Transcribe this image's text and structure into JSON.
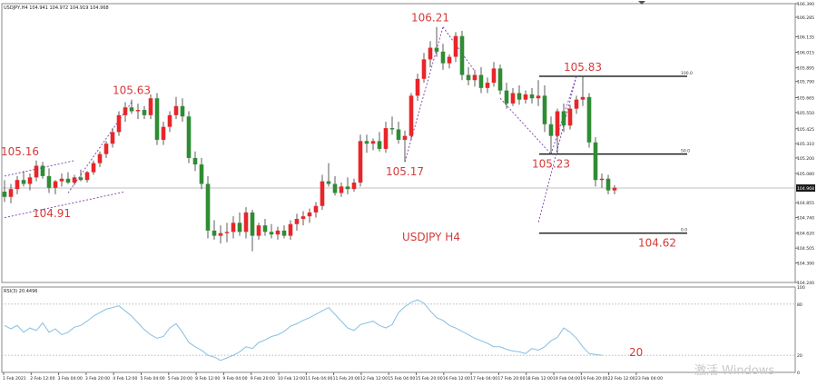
{
  "chart_data": [
    {
      "type": "candlestick",
      "title": "USDJPY,H4 104.941 104.972 104.919 104.968",
      "center_label": "USDJPY H4",
      "symbol": "USDJPY",
      "timeframe": "H4",
      "ylim": [
        104.24,
        106.39
      ],
      "current_price": "104.968",
      "y_ticks": [
        "106.390",
        "106.285",
        "106.135",
        "106.015",
        "105.895",
        "105.790",
        "105.665",
        "105.550",
        "105.425",
        "105.310",
        "105.200",
        "105.080",
        "104.968",
        "104.855",
        "104.740",
        "104.620",
        "104.505",
        "104.390",
        "104.240"
      ],
      "x_ticks": [
        "1 Feb 2021",
        "2 Feb 12:00",
        "3 Feb 04:00",
        "3 Feb 20:00",
        "4 Feb 12:00",
        "5 Feb 04:00",
        "5 Feb 20:00",
        "8 Feb 12:00",
        "9 Feb 04:00",
        "9 Feb 20:00",
        "10 Feb 12:00",
        "11 Feb 04:00",
        "11 Feb 20:00",
        "12 Feb 12:00",
        "15 Feb 04:00",
        "15 Feb 20:00",
        "16 Feb 12:00",
        "17 Feb 04:00",
        "17 Feb 20:00",
        "18 Feb 12:00",
        "19 Feb 04:00",
        "19 Feb 20:00",
        "22 Feb 12:00",
        "23 Feb 04:00"
      ],
      "up_color": "#e8262a",
      "down_color": "#2f8c34",
      "candles": [
        {
          "o": 104.94,
          "h": 105.03,
          "l": 104.86,
          "c": 104.9
        },
        {
          "o": 104.9,
          "h": 105.0,
          "l": 104.85,
          "c": 104.96
        },
        {
          "o": 104.96,
          "h": 105.06,
          "l": 104.92,
          "c": 105.03
        },
        {
          "o": 105.03,
          "h": 105.1,
          "l": 104.98,
          "c": 105.0
        },
        {
          "o": 105.0,
          "h": 105.08,
          "l": 104.95,
          "c": 105.05
        },
        {
          "o": 105.05,
          "h": 105.18,
          "l": 105.02,
          "c": 105.14
        },
        {
          "o": 105.14,
          "h": 105.17,
          "l": 105.04,
          "c": 105.06
        },
        {
          "o": 105.06,
          "h": 105.12,
          "l": 104.93,
          "c": 104.97
        },
        {
          "o": 104.97,
          "h": 105.03,
          "l": 104.92,
          "c": 105.02
        },
        {
          "o": 105.02,
          "h": 105.08,
          "l": 104.98,
          "c": 105.04
        },
        {
          "o": 105.04,
          "h": 105.09,
          "l": 105.0,
          "c": 105.01
        },
        {
          "o": 105.01,
          "h": 105.07,
          "l": 104.99,
          "c": 105.05
        },
        {
          "o": 105.05,
          "h": 105.11,
          "l": 105.02,
          "c": 105.03
        },
        {
          "o": 105.03,
          "h": 105.1,
          "l": 105.01,
          "c": 105.09
        },
        {
          "o": 105.09,
          "h": 105.18,
          "l": 105.07,
          "c": 105.16
        },
        {
          "o": 105.16,
          "h": 105.25,
          "l": 105.13,
          "c": 105.23
        },
        {
          "o": 105.23,
          "h": 105.33,
          "l": 105.2,
          "c": 105.31
        },
        {
          "o": 105.31,
          "h": 105.43,
          "l": 105.28,
          "c": 105.4
        },
        {
          "o": 105.4,
          "h": 105.56,
          "l": 105.37,
          "c": 105.53
        },
        {
          "o": 105.53,
          "h": 105.63,
          "l": 105.48,
          "c": 105.59
        },
        {
          "o": 105.59,
          "h": 105.65,
          "l": 105.54,
          "c": 105.56
        },
        {
          "o": 105.56,
          "h": 105.62,
          "l": 105.5,
          "c": 105.57
        },
        {
          "o": 105.57,
          "h": 105.6,
          "l": 105.5,
          "c": 105.53
        },
        {
          "o": 105.53,
          "h": 105.69,
          "l": 105.5,
          "c": 105.66
        },
        {
          "o": 105.66,
          "h": 105.7,
          "l": 105.3,
          "c": 105.34
        },
        {
          "o": 105.34,
          "h": 105.48,
          "l": 105.3,
          "c": 105.44
        },
        {
          "o": 105.44,
          "h": 105.56,
          "l": 105.4,
          "c": 105.53
        },
        {
          "o": 105.53,
          "h": 105.67,
          "l": 105.5,
          "c": 105.6
        },
        {
          "o": 105.6,
          "h": 105.66,
          "l": 105.48,
          "c": 105.52
        },
        {
          "o": 105.52,
          "h": 105.56,
          "l": 105.16,
          "c": 105.2
        },
        {
          "o": 105.2,
          "h": 105.25,
          "l": 105.1,
          "c": 105.15
        },
        {
          "o": 105.15,
          "h": 105.2,
          "l": 104.96,
          "c": 105.0
        },
        {
          "o": 105.0,
          "h": 105.06,
          "l": 104.58,
          "c": 104.64
        },
        {
          "o": 104.64,
          "h": 104.72,
          "l": 104.57,
          "c": 104.6
        },
        {
          "o": 104.6,
          "h": 104.68,
          "l": 104.54,
          "c": 104.62
        },
        {
          "o": 104.62,
          "h": 104.7,
          "l": 104.55,
          "c": 104.63
        },
        {
          "o": 104.63,
          "h": 104.75,
          "l": 104.58,
          "c": 104.7
        },
        {
          "o": 104.7,
          "h": 104.78,
          "l": 104.6,
          "c": 104.63
        },
        {
          "o": 104.63,
          "h": 104.82,
          "l": 104.58,
          "c": 104.78
        },
        {
          "o": 104.78,
          "h": 104.8,
          "l": 104.48,
          "c": 104.6
        },
        {
          "o": 104.6,
          "h": 104.7,
          "l": 104.57,
          "c": 104.68
        },
        {
          "o": 104.68,
          "h": 104.73,
          "l": 104.6,
          "c": 104.63
        },
        {
          "o": 104.63,
          "h": 104.69,
          "l": 104.58,
          "c": 104.61
        },
        {
          "o": 104.61,
          "h": 104.67,
          "l": 104.57,
          "c": 104.64
        },
        {
          "o": 104.64,
          "h": 104.68,
          "l": 104.58,
          "c": 104.6
        },
        {
          "o": 104.6,
          "h": 104.72,
          "l": 104.57,
          "c": 104.69
        },
        {
          "o": 104.69,
          "h": 104.77,
          "l": 104.64,
          "c": 104.73
        },
        {
          "o": 104.73,
          "h": 104.79,
          "l": 104.68,
          "c": 104.75
        },
        {
          "o": 104.75,
          "h": 104.81,
          "l": 104.7,
          "c": 104.78
        },
        {
          "o": 104.78,
          "h": 104.86,
          "l": 104.74,
          "c": 104.83
        },
        {
          "o": 104.83,
          "h": 105.07,
          "l": 104.8,
          "c": 105.02
        },
        {
          "o": 105.02,
          "h": 105.16,
          "l": 104.98,
          "c": 105.0
        },
        {
          "o": 105.0,
          "h": 105.06,
          "l": 104.91,
          "c": 104.93
        },
        {
          "o": 104.93,
          "h": 105.01,
          "l": 104.9,
          "c": 104.98
        },
        {
          "o": 104.98,
          "h": 105.05,
          "l": 104.92,
          "c": 104.96
        },
        {
          "o": 104.96,
          "h": 105.04,
          "l": 104.94,
          "c": 105.01
        },
        {
          "o": 105.01,
          "h": 105.38,
          "l": 104.98,
          "c": 105.33
        },
        {
          "o": 105.33,
          "h": 105.38,
          "l": 105.24,
          "c": 105.31
        },
        {
          "o": 105.31,
          "h": 105.35,
          "l": 105.26,
          "c": 105.33
        },
        {
          "o": 105.33,
          "h": 105.4,
          "l": 105.25,
          "c": 105.27
        },
        {
          "o": 105.27,
          "h": 105.48,
          "l": 105.24,
          "c": 105.43
        },
        {
          "o": 105.43,
          "h": 105.52,
          "l": 105.38,
          "c": 105.42
        },
        {
          "o": 105.42,
          "h": 105.48,
          "l": 105.31,
          "c": 105.34
        },
        {
          "o": 105.34,
          "h": 105.41,
          "l": 105.17,
          "c": 105.37
        },
        {
          "o": 105.37,
          "h": 105.7,
          "l": 105.34,
          "c": 105.68
        },
        {
          "o": 105.68,
          "h": 105.85,
          "l": 105.64,
          "c": 105.81
        },
        {
          "o": 105.81,
          "h": 106.01,
          "l": 105.78,
          "c": 105.96
        },
        {
          "o": 105.96,
          "h": 106.1,
          "l": 105.9,
          "c": 106.05
        },
        {
          "o": 106.05,
          "h": 106.21,
          "l": 105.98,
          "c": 106.02
        },
        {
          "o": 106.02,
          "h": 106.08,
          "l": 105.88,
          "c": 105.93
        },
        {
          "o": 105.93,
          "h": 106.0,
          "l": 105.89,
          "c": 105.98
        },
        {
          "o": 105.98,
          "h": 106.17,
          "l": 105.94,
          "c": 106.14
        },
        {
          "o": 106.14,
          "h": 106.18,
          "l": 105.8,
          "c": 105.84
        },
        {
          "o": 105.84,
          "h": 105.9,
          "l": 105.76,
          "c": 105.8
        },
        {
          "o": 105.8,
          "h": 105.88,
          "l": 105.75,
          "c": 105.84
        },
        {
          "o": 105.84,
          "h": 105.9,
          "l": 105.7,
          "c": 105.74
        },
        {
          "o": 105.74,
          "h": 105.82,
          "l": 105.7,
          "c": 105.78
        },
        {
          "o": 105.78,
          "h": 105.94,
          "l": 105.75,
          "c": 105.89
        },
        {
          "o": 105.89,
          "h": 105.92,
          "l": 105.69,
          "c": 105.72
        },
        {
          "o": 105.72,
          "h": 105.78,
          "l": 105.58,
          "c": 105.62
        },
        {
          "o": 105.62,
          "h": 105.74,
          "l": 105.6,
          "c": 105.7
        },
        {
          "o": 105.7,
          "h": 105.76,
          "l": 105.61,
          "c": 105.65
        },
        {
          "o": 105.65,
          "h": 105.72,
          "l": 105.62,
          "c": 105.69
        },
        {
          "o": 105.69,
          "h": 105.74,
          "l": 105.62,
          "c": 105.66
        },
        {
          "o": 105.66,
          "h": 105.8,
          "l": 105.6,
          "c": 105.68
        },
        {
          "o": 105.68,
          "h": 105.76,
          "l": 105.4,
          "c": 105.46
        },
        {
          "o": 105.46,
          "h": 105.52,
          "l": 105.24,
          "c": 105.37
        },
        {
          "o": 105.37,
          "h": 105.58,
          "l": 105.23,
          "c": 105.56
        },
        {
          "o": 105.56,
          "h": 105.62,
          "l": 105.4,
          "c": 105.45
        },
        {
          "o": 105.45,
          "h": 105.61,
          "l": 105.42,
          "c": 105.58
        },
        {
          "o": 105.58,
          "h": 105.68,
          "l": 105.54,
          "c": 105.65
        },
        {
          "o": 105.65,
          "h": 105.83,
          "l": 105.6,
          "c": 105.67
        },
        {
          "o": 105.67,
          "h": 105.7,
          "l": 105.28,
          "c": 105.32
        },
        {
          "o": 105.32,
          "h": 105.36,
          "l": 104.98,
          "c": 105.03
        },
        {
          "o": 105.03,
          "h": 105.08,
          "l": 104.97,
          "c": 105.04
        },
        {
          "o": 105.04,
          "h": 105.07,
          "l": 104.92,
          "c": 104.95
        },
        {
          "o": 104.95,
          "h": 104.99,
          "l": 104.92,
          "c": 104.97
        }
      ],
      "price_labels": [
        {
          "text": "105.16",
          "index": 5,
          "price": 105.18,
          "pos": "above",
          "dx": -18
        },
        {
          "text": "104.91",
          "index": 10,
          "price": 104.85,
          "pos": "below",
          "dx": -18
        },
        {
          "text": "105.63",
          "index": 20,
          "price": 105.65,
          "pos": "above",
          "dx": 0
        },
        {
          "text": "105.17",
          "index": 63,
          "price": 105.17,
          "pos": "below",
          "dx": 0
        },
        {
          "text": "106.21",
          "index": 67,
          "price": 106.21,
          "pos": "above",
          "dx": 0
        },
        {
          "text": "105.83",
          "index": 90,
          "price": 105.83,
          "pos": "above",
          "dx": 7
        },
        {
          "text": "105.23",
          "index": 86,
          "price": 105.23,
          "pos": "below",
          "dx": 0
        },
        {
          "text": "104.62",
          "index": 97,
          "price": 104.62,
          "pos": "below",
          "dx": 40
        }
      ],
      "fibonacci": {
        "start_index": 84,
        "end_index": 107,
        "levels": [
          {
            "label": "100.0",
            "price": 105.83
          },
          {
            "label": "50.0",
            "price": 105.23
          },
          {
            "label": "0.0",
            "price": 104.62
          }
        ]
      },
      "dashed_channel": [
        {
          "from": [
            0,
            105.06
          ],
          "to": [
            11,
            105.18
          ]
        },
        {
          "from": [
            0,
            104.74
          ],
          "to": [
            19,
            104.94
          ]
        },
        {
          "from": [
            10,
            104.93
          ],
          "to": [
            20,
            105.63
          ]
        },
        {
          "from": [
            63,
            105.17
          ],
          "to": [
            69,
            106.21
          ]
        },
        {
          "from": [
            69,
            106.21
          ],
          "to": [
            74,
            105.87
          ]
        },
        {
          "from": [
            78,
            105.66
          ],
          "to": [
            86,
            105.23
          ]
        },
        {
          "from": [
            86,
            105.23
          ],
          "to": [
            90,
            105.83
          ]
        },
        {
          "from": [
            90,
            105.83
          ],
          "to": [
            84,
            104.7
          ]
        }
      ]
    },
    {
      "type": "line",
      "title": "RSI(3) 20.4496",
      "ylim": [
        0,
        100
      ],
      "levels": [
        {
          "label": "80",
          "value": 80
        },
        {
          "label": "20",
          "value": 20
        }
      ],
      "y_tick_labels": [
        "100",
        "80",
        "20",
        "0"
      ],
      "annotation": "20",
      "series": [
        {
          "color": "#86bfe2",
          "values": [
            55,
            51,
            55,
            47,
            52,
            49,
            58,
            47,
            51,
            44,
            47,
            53,
            55,
            60,
            66,
            70,
            74,
            76,
            78,
            72,
            66,
            58,
            50,
            44,
            40,
            42,
            52,
            57,
            47,
            35,
            30,
            26,
            20,
            18,
            14,
            17,
            20,
            24,
            30,
            28,
            35,
            38,
            42,
            44,
            48,
            54,
            57,
            61,
            64,
            68,
            72,
            76,
            68,
            60,
            52,
            49,
            56,
            58,
            60,
            55,
            52,
            56,
            70,
            77,
            82,
            85,
            81,
            72,
            64,
            61,
            55,
            52,
            48,
            44,
            40,
            37,
            34,
            30,
            30,
            27,
            25,
            24,
            22,
            28,
            26,
            30,
            37,
            41,
            52,
            47,
            40,
            30,
            22,
            21,
            20
          ]
        }
      ]
    }
  ],
  "watermark": "激活 Windows"
}
